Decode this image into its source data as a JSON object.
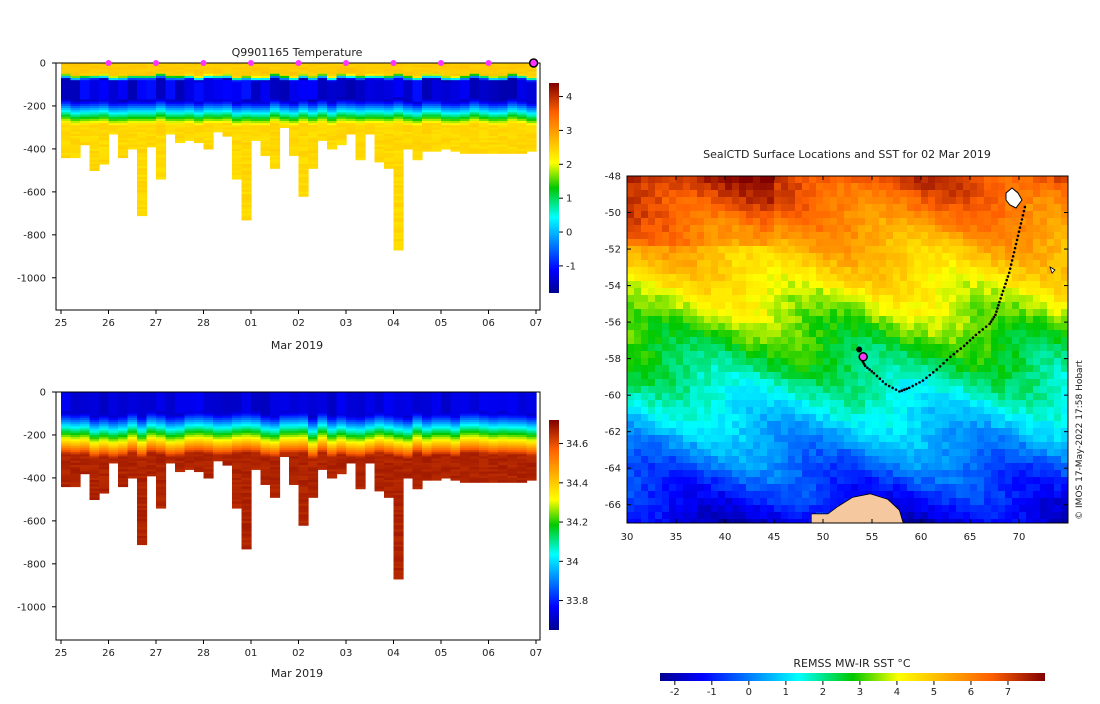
{
  "chart_data": [
    {
      "type": "heatmap",
      "id": "temp_section",
      "title": "Q9901165  Temperature",
      "xlabel": "Mar 2019",
      "x_tick_labels": [
        "25",
        "26",
        "27",
        "28",
        "01",
        "02",
        "03",
        "04",
        "05",
        "06",
        "07"
      ],
      "y_tick_values": [
        0,
        -200,
        -400,
        -600,
        -800,
        -1000
      ],
      "y_tick_labels": [
        "0",
        "-200",
        "-400",
        "-600",
        "-800",
        "-1000"
      ],
      "ylim": [
        -1150,
        0
      ],
      "xlim_days": [
        0,
        10.05
      ],
      "surface_marker_days": [
        1,
        2,
        3,
        4,
        5,
        6,
        7,
        8,
        9
      ],
      "colorbar": {
        "min": -1.8,
        "max": 4.4,
        "tick_values": [
          -1,
          0,
          1,
          2,
          3,
          4
        ],
        "tick_labels": [
          "-1",
          "0",
          "1",
          "2",
          "3",
          "4"
        ]
      },
      "profile_count": 50,
      "profile_max_depth_m": [
        440,
        440,
        380,
        500,
        470,
        330,
        440,
        400,
        710,
        390,
        540,
        330,
        370,
        360,
        370,
        400,
        320,
        340,
        540,
        730,
        360,
        430,
        490,
        300,
        430,
        620,
        490,
        360,
        400,
        380,
        330,
        450,
        330,
        460,
        490,
        870,
        400,
        450,
        410,
        410,
        400,
        410,
        420,
        420,
        420,
        420,
        420,
        420,
        420,
        410
      ],
      "structure": {
        "surface_value": 2.6,
        "min_core_value": -1.6,
        "core_top_m": 80,
        "core_bottom_m": 170,
        "deep_value": 2.5
      }
    },
    {
      "type": "heatmap",
      "id": "salinity_section",
      "title": "",
      "xlabel": "Mar 2019",
      "x_tick_labels": [
        "25",
        "26",
        "27",
        "28",
        "01",
        "02",
        "03",
        "04",
        "05",
        "06",
        "07"
      ],
      "y_tick_values": [
        0,
        -200,
        -400,
        -600,
        -800,
        -1000
      ],
      "y_tick_labels": [
        "0",
        "-200",
        "-400",
        "-600",
        "-800",
        "-1000"
      ],
      "ylim": [
        -1150,
        0
      ],
      "colorbar": {
        "min": 33.65,
        "max": 34.72,
        "tick_values": [
          33.8,
          34,
          34.2,
          34.4,
          34.6
        ],
        "tick_labels": [
          "33.8",
          "34",
          "34.2",
          "34.4",
          "34.6"
        ]
      },
      "structure": {
        "surface_value": 33.7,
        "halocline_top_m": 100,
        "halocline_bottom_m": 300,
        "deep_value": 34.68
      }
    },
    {
      "type": "heatmap",
      "id": "sst_map",
      "title": "SealCTD Surface Locations and SST for 02 Mar 2019",
      "x_tick_values": [
        30,
        35,
        40,
        45,
        50,
        55,
        60,
        65,
        70
      ],
      "x_tick_labels": [
        "30",
        "35",
        "40",
        "45",
        "50",
        "55",
        "60",
        "65",
        "70"
      ],
      "y_tick_values": [
        -48,
        -50,
        -52,
        -54,
        -56,
        -58,
        -60,
        -62,
        -64,
        -66
      ],
      "y_tick_labels": [
        "-48",
        "-50",
        "-52",
        "-54",
        "-56",
        "-58",
        "-60",
        "-62",
        "-64",
        "-66"
      ],
      "lon_range": [
        30,
        75
      ],
      "lat_range": [
        -67,
        -48
      ],
      "track_lonlat": [
        [
          70.6,
          -49.7
        ],
        [
          70.2,
          -50.6
        ],
        [
          69.8,
          -51.5
        ],
        [
          69.4,
          -52.4
        ],
        [
          69.0,
          -53.3
        ],
        [
          68.5,
          -54.1
        ],
        [
          68.0,
          -54.9
        ],
        [
          67.6,
          -55.6
        ],
        [
          67.0,
          -56.1
        ],
        [
          65.6,
          -56.7
        ],
        [
          64.4,
          -57.3
        ],
        [
          63.0,
          -57.9
        ],
        [
          61.6,
          -58.6
        ],
        [
          60.2,
          -59.2
        ],
        [
          58.8,
          -59.6
        ],
        [
          57.8,
          -59.8
        ],
        [
          56.4,
          -59.4
        ],
        [
          55.2,
          -58.8
        ],
        [
          54.3,
          -58.4
        ],
        [
          53.9,
          -58.0
        ]
      ],
      "current_position": [
        54.1,
        -57.9
      ],
      "previous_position": [
        54.0,
        -57.5
      ],
      "credit": "© IMOS 17-May-2022 17:58 Hobart"
    }
  ],
  "colorbar_sst": {
    "label": "REMSS MW-IR SST °C",
    "min": -2.4,
    "max": 8.0,
    "tick_values": [
      -2,
      -1,
      0,
      1,
      2,
      3,
      4,
      5,
      6,
      7
    ],
    "tick_labels": [
      "-2",
      "-1",
      "0",
      "1",
      "2",
      "3",
      "4",
      "5",
      "6",
      "7"
    ]
  },
  "colors": {
    "land": "#f6c8a0",
    "track": "#000000",
    "marker": "#ff33ff",
    "axis": "#000000"
  }
}
